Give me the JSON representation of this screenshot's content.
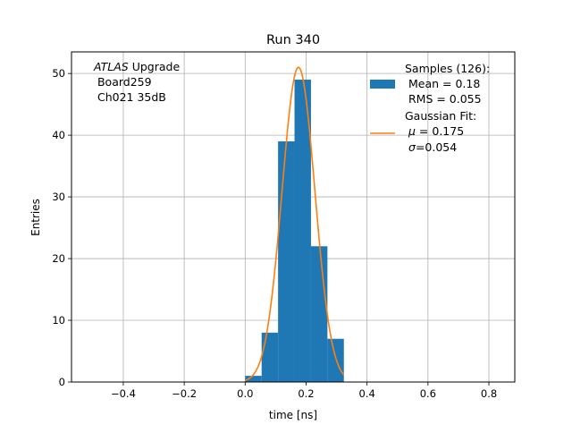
{
  "chart_data": {
    "type": "bar",
    "title": "Run 340",
    "xlabel": "time [ns]",
    "ylabel": "Entries",
    "xlim": [
      -0.57,
      0.885
    ],
    "ylim": [
      0,
      53.5
    ],
    "grid": true,
    "x_ticks": [
      -0.4,
      -0.2,
      0.0,
      0.2,
      0.4,
      0.6,
      0.8
    ],
    "x_tick_labels": [
      "−0.4",
      "−0.2",
      "0.0",
      "0.2",
      "0.4",
      "0.6",
      "0.8"
    ],
    "y_ticks": [
      0,
      10,
      20,
      30,
      40,
      50
    ],
    "y_tick_labels": [
      "0",
      "10",
      "20",
      "30",
      "40",
      "50"
    ],
    "histogram": {
      "bin_edges": [
        0.0,
        0.054,
        0.108,
        0.162,
        0.216,
        0.27,
        0.324
      ],
      "counts": [
        1,
        8,
        39,
        49,
        22,
        7
      ],
      "color": "#1f77b4"
    },
    "fit": {
      "mu": 0.175,
      "sigma": 0.054,
      "amplitude": 51,
      "x_range": [
        0.0,
        0.324
      ],
      "color": "#ff7f0e"
    },
    "annotation": {
      "italic_part": "ATLAS",
      "line1_rest": " Upgrade",
      "line2": " Board259",
      "line3": " Ch021 35dB"
    },
    "legend": {
      "position": "top-right",
      "samples_lines": [
        "Samples (126):",
        " Mean = 0.18",
        " RMS = 0.055"
      ],
      "fit_line1": "Gaussian Fit:",
      "fit_mu_symbol": "μ",
      "fit_mu_rest": " = 0.175",
      "fit_sigma_symbol": "σ",
      "fit_sigma_rest": "=0.054"
    }
  }
}
